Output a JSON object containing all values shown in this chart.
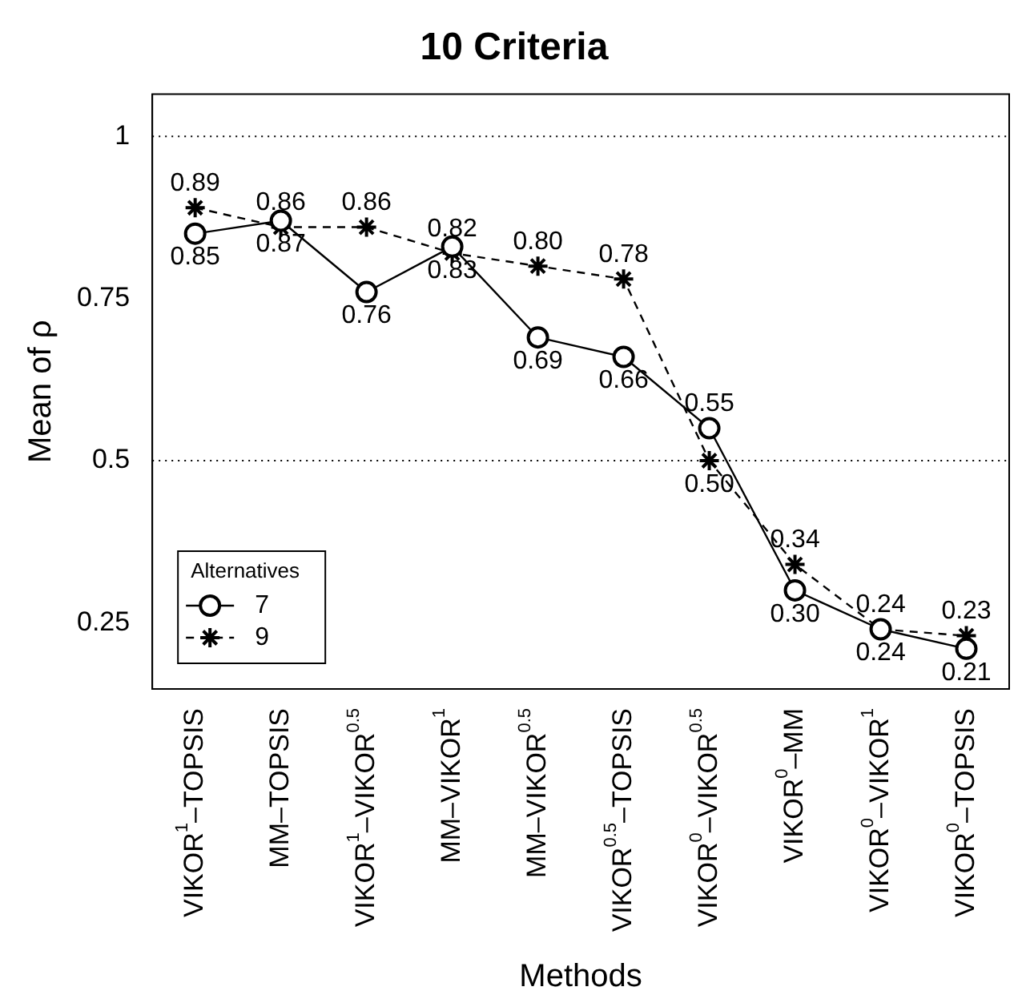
{
  "chart_data": {
    "type": "line",
    "title": "10 Criteria",
    "xlabel": "Methods",
    "ylabel": "Mean of ρ",
    "legend_title": "Alternatives",
    "legend": "bottom left",
    "grid": false,
    "categories": [
      "VIKOR$^{1}$–TOPSIS",
      "MM–TOPSIS",
      "VIKOR$^{1}$–VIKOR$^{0.5}$",
      "MM–VIKOR$^{1}$",
      "MM–VIKOR$^{0.5}$",
      "VIKOR$^{0.5}$–TOPSIS",
      "VIKOR$^{0}$–VIKOR$^{0.5}$",
      "VIKOR$^{0}$–MM",
      "VIKOR$^{0}$–VIKOR$^{1}$",
      "VIKOR$^{0}$–TOPSIS"
    ],
    "series": [
      {
        "name": "7",
        "color": "#000000",
        "marker": "circle",
        "line_style": "solid",
        "values": [
          0.85,
          0.87,
          0.76,
          0.83,
          0.69,
          0.66,
          0.55,
          0.3,
          0.24,
          0.21
        ],
        "value_labels": [
          "0.85",
          "0.87",
          "0.76",
          "0.83",
          "0.69",
          "0.66",
          "0.55",
          "0.30",
          "0.24",
          "0.21"
        ]
      },
      {
        "name": "9",
        "color": "#000000",
        "marker": "cross",
        "line_style": "dashed",
        "values": [
          0.89,
          0.86,
          0.86,
          0.82,
          0.8,
          0.78,
          0.5,
          0.34,
          0.24,
          0.23
        ],
        "value_labels": [
          "0.89",
          "0.86",
          "0.86",
          "0.82",
          "0.80",
          "0.78",
          "0.50",
          "0.34",
          "0.24",
          "0.23"
        ]
      }
    ],
    "ylim": [
      0.148,
      1.065
    ],
    "yticks": [
      0.25,
      0.5,
      0.75,
      1
    ],
    "ref_lines": [
      {
        "axis": "y",
        "value": 0.5,
        "line_style": "dotted"
      },
      {
        "axis": "y",
        "value": 1,
        "line_style": "dotted"
      }
    ]
  }
}
